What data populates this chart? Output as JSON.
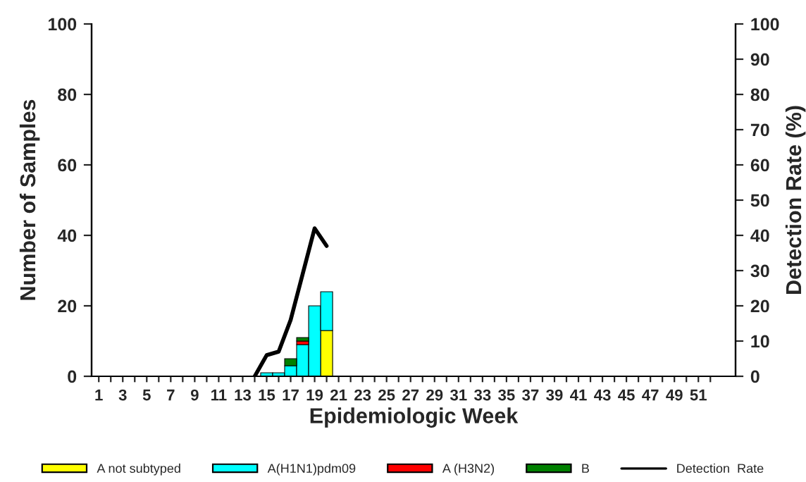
{
  "chart_data": {
    "type": "bar",
    "stacked": true,
    "xlabel": "Epidemiologic Week",
    "ylabel": "Number of Samples",
    "y2label": "Detection Rate (%)",
    "categories": [
      "1",
      null,
      "3",
      null,
      "5",
      null,
      "7",
      null,
      "9",
      null,
      "11",
      null,
      "13",
      null,
      "15",
      null,
      "17",
      null,
      "19",
      null,
      "21",
      null,
      "23",
      null,
      "25",
      null,
      "27",
      null,
      "29",
      null,
      "31",
      null,
      "33",
      null,
      "35",
      null,
      "37",
      null,
      "39",
      null,
      "41",
      null,
      "43",
      null,
      "45",
      null,
      "47",
      null,
      "49",
      null,
      "51",
      null
    ],
    "series": [
      {
        "name": "A not subtyped",
        "color": "#ffff00",
        "values": [
          null,
          null,
          null,
          null,
          null,
          null,
          null,
          null,
          null,
          null,
          null,
          null,
          null,
          null,
          null,
          null,
          null,
          null,
          null,
          13,
          null,
          null,
          null,
          null,
          null,
          null,
          null,
          null,
          null,
          null,
          null,
          null,
          null,
          null,
          null,
          null,
          null,
          null,
          null,
          null,
          null,
          null,
          null,
          null,
          null,
          null,
          null,
          null,
          null,
          null,
          null,
          null
        ]
      },
      {
        "name": "A(H1N1)pdm09",
        "color": "#00ffff",
        "values": [
          null,
          null,
          null,
          null,
          null,
          null,
          null,
          null,
          null,
          null,
          null,
          null,
          null,
          null,
          1,
          1,
          3,
          9,
          20,
          11,
          null,
          null,
          null,
          null,
          null,
          null,
          null,
          null,
          null,
          null,
          null,
          null,
          null,
          null,
          null,
          null,
          null,
          null,
          null,
          null,
          null,
          null,
          null,
          null,
          null,
          null,
          null,
          null,
          null,
          null,
          null,
          null
        ]
      },
      {
        "name": "A (H3N2)",
        "color": "#ff0000",
        "values": [
          null,
          null,
          null,
          null,
          null,
          null,
          null,
          null,
          null,
          null,
          null,
          null,
          null,
          null,
          null,
          null,
          null,
          1,
          null,
          null,
          null,
          null,
          null,
          null,
          null,
          null,
          null,
          null,
          null,
          null,
          null,
          null,
          null,
          null,
          null,
          null,
          null,
          null,
          null,
          null,
          null,
          null,
          null,
          null,
          null,
          null,
          null,
          null,
          null,
          null,
          null,
          null
        ]
      },
      {
        "name": "B",
        "color": "#008000",
        "values": [
          null,
          null,
          null,
          null,
          null,
          null,
          null,
          null,
          null,
          null,
          null,
          null,
          null,
          null,
          null,
          null,
          2,
          1,
          null,
          null,
          null,
          null,
          null,
          null,
          null,
          null,
          null,
          null,
          null,
          null,
          null,
          null,
          null,
          null,
          null,
          null,
          null,
          null,
          null,
          null,
          null,
          null,
          null,
          null,
          null,
          null,
          null,
          null,
          null,
          null,
          null,
          null
        ]
      },
      {
        "name": "Detection  Rate",
        "type": "line",
        "axis": "y2",
        "color": "#000000",
        "values": [
          null,
          null,
          null,
          null,
          null,
          null,
          null,
          null,
          null,
          null,
          null,
          null,
          null,
          0,
          6,
          7,
          16,
          29,
          42,
          37,
          null,
          null,
          null,
          null,
          null,
          null,
          null,
          null,
          null,
          null,
          null,
          null,
          null,
          null,
          null,
          null,
          null,
          null,
          null,
          null,
          null,
          null,
          null,
          null,
          null,
          null,
          null,
          null,
          null,
          null,
          null,
          null
        ]
      }
    ],
    "ylim": [
      0,
      100
    ],
    "yticks": [
      0,
      20,
      40,
      60,
      80,
      100
    ],
    "y2lim": [
      0,
      100
    ],
    "y2ticks": [
      0,
      10,
      20,
      30,
      40,
      50,
      60,
      70,
      80,
      90,
      100
    ],
    "legend": "bottom",
    "grid": false,
    "line_style": "solid",
    "marker": "none"
  }
}
